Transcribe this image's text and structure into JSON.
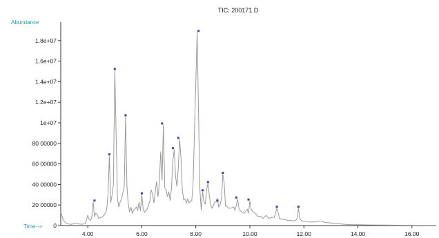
{
  "chart_data": {
    "type": "line",
    "title": "TIC: 200171.D",
    "ylabel": "Abundance",
    "xlabel": "Time-->",
    "xlim": [
      3.0,
      16.9
    ],
    "ylim": [
      0,
      19800000
    ],
    "x_ticks": [
      4.0,
      6.0,
      8.0,
      10.0,
      12.0,
      14.0,
      16.0
    ],
    "x_tick_labels": [
      "4.00",
      "6.00",
      "8.00",
      "10.00",
      "12.00",
      "14.00",
      "16.00"
    ],
    "y_ticks": [
      0,
      2000000,
      4000000,
      6000000,
      8000000,
      10000000,
      12000000,
      14000000,
      16000000,
      18000000
    ],
    "y_tick_labels": [
      "0",
      "20 00000",
      "40 00000",
      "60 00000",
      "80 00000",
      "1e+07",
      "1.2e+07",
      "1.4e+07",
      "1.6e+07",
      "1.8e+07"
    ],
    "grid": false,
    "line_color": "#999999",
    "marker_color": "#3a3aa8",
    "series": [
      {
        "x": [
          3.0,
          3.05,
          3.1,
          3.2,
          3.3,
          3.4,
          3.5,
          3.6,
          3.7,
          3.8,
          3.9,
          3.95,
          4.0,
          4.05,
          4.1,
          4.15,
          4.2,
          4.25,
          4.3,
          4.35,
          4.4,
          4.5,
          4.6,
          4.7,
          4.75,
          4.8,
          4.85,
          4.9,
          4.95,
          5.0,
          5.05,
          5.1,
          5.15,
          5.2,
          5.25,
          5.3,
          5.35,
          5.4,
          5.45,
          5.5,
          5.55,
          5.6,
          5.65,
          5.7,
          5.8,
          5.85,
          5.9,
          5.95,
          6.0,
          6.05,
          6.1,
          6.2,
          6.3,
          6.35,
          6.4,
          6.45,
          6.5,
          6.55,
          6.6,
          6.65,
          6.7,
          6.75,
          6.8,
          6.85,
          6.9,
          6.95,
          7.0,
          7.05,
          7.1,
          7.15,
          7.2,
          7.25,
          7.3,
          7.35,
          7.4,
          7.45,
          7.5,
          7.55,
          7.6,
          7.65,
          7.7,
          7.75,
          7.8,
          7.85,
          7.9,
          7.95,
          8.0,
          8.05,
          8.1,
          8.15,
          8.2,
          8.25,
          8.3,
          8.35,
          8.4,
          8.45,
          8.5,
          8.55,
          8.6,
          8.65,
          8.7,
          8.75,
          8.8,
          8.85,
          8.9,
          8.95,
          9.0,
          9.05,
          9.1,
          9.15,
          9.2,
          9.3,
          9.4,
          9.45,
          9.5,
          9.55,
          9.6,
          9.7,
          9.8,
          9.9,
          9.95,
          10.0,
          10.05,
          10.1,
          10.2,
          10.3,
          10.4,
          10.5,
          10.6,
          10.7,
          10.8,
          10.9,
          10.95,
          11.0,
          11.05,
          11.1,
          11.2,
          11.3,
          11.4,
          11.5,
          11.6,
          11.7,
          11.75,
          11.8,
          11.85,
          11.9,
          12.0,
          12.2,
          12.4,
          12.6,
          12.8,
          13.0,
          13.2,
          13.4,
          13.6,
          13.8,
          14.0,
          14.5,
          15.0,
          15.5,
          16.0,
          16.5,
          16.9
        ],
        "y": [
          1300000,
          900000,
          500000,
          250000,
          150000,
          120000,
          200000,
          180000,
          150000,
          130000,
          200000,
          500000,
          1000000,
          600000,
          500000,
          800000,
          2300000,
          900000,
          1200000,
          1100000,
          700000,
          800000,
          1000000,
          1500000,
          3000000,
          6800000,
          2200000,
          3000000,
          4000000,
          15100000,
          9000000,
          2600000,
          1800000,
          2300000,
          2600000,
          3200000,
          3800000,
          10600000,
          3800000,
          2100000,
          1300000,
          1800000,
          1200000,
          1500000,
          1800000,
          1500000,
          2300000,
          1400000,
          3000000,
          1600000,
          1300000,
          1600000,
          2400000,
          3500000,
          3000000,
          2200000,
          3300000,
          4300000,
          2800000,
          4100000,
          7200000,
          4400000,
          9800000,
          3700000,
          3500000,
          2800000,
          3300000,
          2400000,
          3700000,
          6300000,
          7400000,
          4800000,
          3800000,
          5500000,
          8400000,
          6600000,
          3500000,
          2500000,
          2600000,
          2200000,
          2600000,
          2200000,
          2400000,
          2400000,
          4200000,
          9000000,
          14000000,
          18800000,
          11000000,
          3500000,
          1500000,
          3300000,
          2300000,
          2100000,
          3500000,
          4100000,
          2900000,
          2000000,
          1700000,
          1900000,
          2300000,
          2300000,
          2600000,
          1800000,
          2000000,
          2700000,
          5000000,
          4100000,
          1900000,
          1900000,
          1700000,
          1700000,
          1800000,
          1500000,
          2000000,
          2600000,
          1600000,
          1300000,
          1200000,
          1600000,
          1200000,
          2400000,
          1600000,
          1400000,
          1200000,
          900000,
          900000,
          700000,
          1000000,
          700000,
          800000,
          800000,
          1200000,
          1700000,
          1200000,
          700000,
          600000,
          600000,
          500000,
          500000,
          450000,
          500000,
          700000,
          1700000,
          700000,
          500000,
          400000,
          350000,
          350000,
          450000,
          300000,
          250000,
          200000,
          150000,
          100000,
          80000,
          80000,
          60000,
          50000,
          40000,
          30000,
          30000,
          30000
        ]
      }
    ],
    "peak_markers": [
      {
        "x": 4.25,
        "y": 2300000
      },
      {
        "x": 4.8,
        "y": 6800000
      },
      {
        "x": 5.0,
        "y": 15100000
      },
      {
        "x": 5.4,
        "y": 10600000
      },
      {
        "x": 6.0,
        "y": 3000000
      },
      {
        "x": 6.75,
        "y": 9800000
      },
      {
        "x": 7.15,
        "y": 7400000
      },
      {
        "x": 7.35,
        "y": 8400000
      },
      {
        "x": 8.1,
        "y": 18800000
      },
      {
        "x": 8.25,
        "y": 3300000
      },
      {
        "x": 8.45,
        "y": 4100000
      },
      {
        "x": 8.8,
        "y": 2300000
      },
      {
        "x": 9.0,
        "y": 5000000
      },
      {
        "x": 9.5,
        "y": 2600000
      },
      {
        "x": 9.95,
        "y": 2400000
      },
      {
        "x": 11.0,
        "y": 1700000
      },
      {
        "x": 11.8,
        "y": 1700000
      }
    ]
  }
}
